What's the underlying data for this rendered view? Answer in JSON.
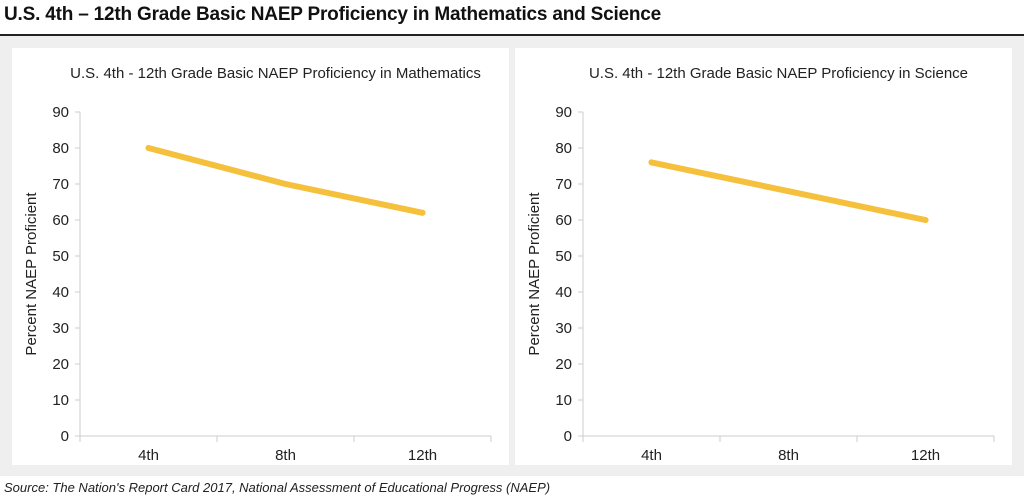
{
  "title": "U.S. 4th – 12th Grade Basic NAEP Proficiency in Mathematics and Science",
  "source": "Source: The Nation's Report Card 2017, National Assessment of Educational Progress (NAEP)",
  "colors": {
    "line": "#f5c03b",
    "axis": "#cccccc",
    "panel_bg": "#efefef"
  },
  "chart_data": [
    {
      "type": "line",
      "title": "U.S. 4th - 12th Grade Basic NAEP Proficiency in Mathematics",
      "ylabel": "Percent NAEP Proficient",
      "xlabel": "",
      "categories": [
        "4th",
        "8th",
        "12th"
      ],
      "values": [
        80,
        70,
        62
      ],
      "ylim": [
        0,
        90
      ],
      "yticks": [
        "0",
        "10",
        "20",
        "30",
        "40",
        "50",
        "60",
        "70",
        "80",
        "90"
      ],
      "grid": false,
      "legend": "none"
    },
    {
      "type": "line",
      "title": "U.S. 4th - 12th Grade Basic NAEP Proficiency in Science",
      "ylabel": "Percent NAEP Proficient",
      "xlabel": "",
      "categories": [
        "4th",
        "8th",
        "12th"
      ],
      "values": [
        76,
        68,
        60
      ],
      "ylim": [
        0,
        90
      ],
      "yticks": [
        "0",
        "10",
        "20",
        "30",
        "40",
        "50",
        "60",
        "70",
        "80",
        "90"
      ],
      "grid": false,
      "legend": "none"
    }
  ]
}
